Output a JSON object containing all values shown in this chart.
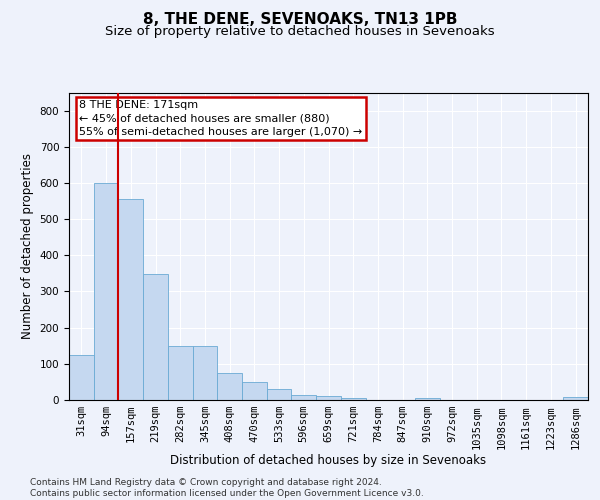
{
  "title": "8, THE DENE, SEVENOAKS, TN13 1PB",
  "subtitle": "Size of property relative to detached houses in Sevenoaks",
  "xlabel": "Distribution of detached houses by size in Sevenoaks",
  "ylabel": "Number of detached properties",
  "categories": [
    "31sqm",
    "94sqm",
    "157sqm",
    "219sqm",
    "282sqm",
    "345sqm",
    "408sqm",
    "470sqm",
    "533sqm",
    "596sqm",
    "659sqm",
    "721sqm",
    "784sqm",
    "847sqm",
    "910sqm",
    "972sqm",
    "1035sqm",
    "1098sqm",
    "1161sqm",
    "1223sqm",
    "1286sqm"
  ],
  "values": [
    125,
    600,
    555,
    348,
    150,
    150,
    75,
    50,
    30,
    15,
    10,
    5,
    0,
    0,
    5,
    0,
    0,
    0,
    0,
    0,
    8
  ],
  "bar_color": "#c5d8f0",
  "bar_edge_color": "#6aaad4",
  "vline_x_index": 2,
  "vline_color": "#cc0000",
  "annotation_text": "8 THE DENE: 171sqm\n← 45% of detached houses are smaller (880)\n55% of semi-detached houses are larger (1,070) →",
  "annotation_box_color": "#cc0000",
  "ylim": [
    0,
    850
  ],
  "yticks": [
    0,
    100,
    200,
    300,
    400,
    500,
    600,
    700,
    800
  ],
  "title_fontsize": 11,
  "subtitle_fontsize": 9.5,
  "axis_label_fontsize": 8.5,
  "tick_fontsize": 7.5,
  "footer_text": "Contains HM Land Registry data © Crown copyright and database right 2024.\nContains public sector information licensed under the Open Government Licence v3.0.",
  "background_color": "#eef2fb",
  "plot_bg_color": "#eef2fb"
}
